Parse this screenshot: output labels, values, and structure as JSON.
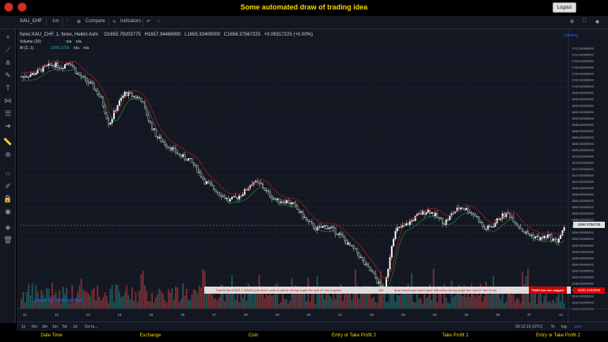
{
  "app": {
    "title": "Some automated draw of trading idea",
    "logout_label": "Logout"
  },
  "toolbar": {
    "symbol": "XAU_CHF",
    "interval": "1m",
    "compare_label": "Compare",
    "indicators_label": "Indicators"
  },
  "legend": {
    "series_name": "forex:XAU_CHF, 1, forex, Heikin Ashi",
    "open": "O1655.79203775",
    "high": "H1657.34468900",
    "low": "L1655.33400000",
    "close": "C1656.37567225",
    "change": "+0.06317225 (+0.00%)",
    "volume_label": "Volume (20)",
    "volume_value": "n/a",
    "volume_value2": "n/a",
    "al_label": "Al (1, 1)",
    "al_value1": "1656.3756",
    "al_value2": "n/a",
    "al_value3": "n/a",
    "loading": "Loading"
  },
  "banner": {
    "text1": "Stat till flip ENDS 1 DRAW just when: price is above strong angle line and #1 line is green",
    "text2": "OR",
    "text3": "draw shorts just when price still below strong angle line and #1 line is red",
    "text4": "THEN See the magic!!"
  },
  "price_tags": {
    "current": "1656.3756725",
    "lower": "1635.2162505"
  },
  "chart_data": {
    "type": "candlestick",
    "x_ticks": [
      "11",
      "12",
      "13",
      "14",
      "15",
      "16",
      "17",
      "18",
      "19",
      "20",
      "21",
      "22",
      "23",
      "24",
      "25",
      "26",
      "27",
      "12"
    ],
    "y_ticks": [
      "1712.00000000",
      "1710.00000000",
      "1708.00000000",
      "1706.00000000",
      "1704.00000000",
      "1702.00000000",
      "1700.00000000",
      "1698.00000000",
      "1696.00000000",
      "1694.00000000",
      "1692.00000000",
      "1690.00000000",
      "1688.00000000",
      "1686.00000000",
      "1684.00000000",
      "1682.00000000",
      "1680.00000000",
      "1678.00000000",
      "1676.00000000",
      "1674.00000000",
      "1672.00000000",
      "1670.00000000",
      "1668.00000000",
      "1666.00000000",
      "1664.00000000",
      "1662.00000000",
      "1660.00000000",
      "1658.00000000",
      "1656.00000000",
      "1654.00000000",
      "1652.00000000",
      "1650.00000000",
      "1648.00000000",
      "1646.00000000",
      "1644.00000000",
      "1642.00000000",
      "1640.00000000",
      "1638.00000000",
      "1636.00000000",
      "1634.00000000",
      "1632.00000000",
      "1630.00000000"
    ],
    "ylim": [
      1630,
      1716
    ],
    "price_path": [
      [
        0,
        1703
      ],
      [
        3,
        1704
      ],
      [
        6,
        1706
      ],
      [
        8,
        1707
      ],
      [
        10,
        1706
      ],
      [
        12,
        1708
      ],
      [
        14,
        1704
      ],
      [
        16,
        1702
      ],
      [
        18,
        1700
      ],
      [
        20,
        1696
      ],
      [
        22,
        1688
      ],
      [
        24,
        1694
      ],
      [
        26,
        1698
      ],
      [
        28,
        1697
      ],
      [
        30,
        1696
      ],
      [
        32,
        1689
      ],
      [
        34,
        1684
      ],
      [
        36,
        1682
      ],
      [
        38,
        1680
      ],
      [
        40,
        1678
      ],
      [
        42,
        1677
      ],
      [
        44,
        1674
      ],
      [
        46,
        1670
      ],
      [
        48,
        1668
      ],
      [
        50,
        1666
      ],
      [
        52,
        1664
      ],
      [
        54,
        1665
      ],
      [
        56,
        1667
      ],
      [
        58,
        1670
      ],
      [
        60,
        1669
      ],
      [
        62,
        1666
      ],
      [
        64,
        1664
      ],
      [
        66,
        1664
      ],
      [
        68,
        1663
      ],
      [
        70,
        1660
      ],
      [
        72,
        1657
      ],
      [
        74,
        1655
      ],
      [
        76,
        1656
      ],
      [
        78,
        1655
      ],
      [
        80,
        1653
      ],
      [
        82,
        1650
      ],
      [
        84,
        1648
      ],
      [
        86,
        1644
      ],
      [
        88,
        1641
      ],
      [
        90,
        1637
      ],
      [
        91,
        1636
      ],
      [
        92,
        1644
      ],
      [
        93,
        1652
      ],
      [
        94,
        1655
      ],
      [
        96,
        1656
      ],
      [
        98,
        1658
      ],
      [
        100,
        1660
      ],
      [
        102,
        1661
      ],
      [
        104,
        1659
      ],
      [
        106,
        1657
      ],
      [
        108,
        1660
      ],
      [
        110,
        1662
      ],
      [
        112,
        1661
      ],
      [
        114,
        1659
      ],
      [
        116,
        1655
      ],
      [
        118,
        1656
      ],
      [
        120,
        1659
      ],
      [
        122,
        1660
      ],
      [
        124,
        1657
      ],
      [
        126,
        1654
      ],
      [
        128,
        1653
      ],
      [
        130,
        1652
      ],
      [
        132,
        1653
      ],
      [
        134,
        1651
      ],
      [
        136,
        1655
      ]
    ],
    "volume_ylim": [
      0,
      100
    ],
    "current_price": 1656.3756725,
    "lower_price": 1635.2162505
  },
  "bottombar": {
    "ranges": [
      "1y",
      "6m",
      "3m",
      "1m",
      "5d",
      "1d"
    ],
    "goto": "Go to...",
    "time": "09:12:19 (UTC)",
    "pct": "%",
    "log": "log",
    "auto": "auto"
  },
  "footer": {
    "labels": [
      "Date Time",
      "Exchange",
      "Coin",
      "Entry or Take Profit 2",
      "Take Profit 1",
      "Entry or Take Profit 2"
    ]
  },
  "watermark": "Chart by TradingView",
  "colors": {
    "up": "#26a69a",
    "down": "#ef5350",
    "accent": "#ffd600"
  }
}
